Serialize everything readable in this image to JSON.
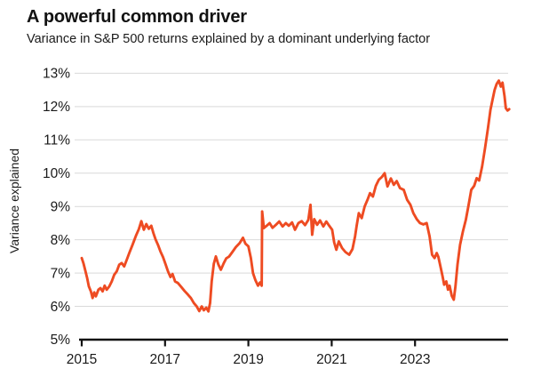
{
  "header": {
    "title": "A powerful common driver",
    "subtitle": "Variance in S&P 500 returns explained by a dominant underlying factor"
  },
  "chart_data": {
    "type": "line",
    "title": "A powerful common driver",
    "subtitle": "Variance in S&P 500 returns explained by a dominant underlying factor",
    "xlabel": "",
    "ylabel": "Variance explained",
    "ylim": [
      5,
      13
    ],
    "xlim": [
      2014.95,
      2025.3
    ],
    "yticks": [
      5,
      6,
      7,
      8,
      9,
      10,
      11,
      12,
      13
    ],
    "ytick_suffix": "%",
    "xticks": [
      2015,
      2017,
      2019,
      2021,
      2023
    ],
    "grid": "horizontal",
    "legend": "none",
    "line_color": "#EE4B22",
    "grid_color": "#d9d9d9",
    "axis_color": "#111111",
    "label_color": "#1a1a1a",
    "series": [
      {
        "name": "Variance explained by dominant factor",
        "points": [
          [
            2015.0,
            7.45
          ],
          [
            2015.04,
            7.3
          ],
          [
            2015.08,
            7.1
          ],
          [
            2015.13,
            6.85
          ],
          [
            2015.17,
            6.6
          ],
          [
            2015.22,
            6.45
          ],
          [
            2015.26,
            6.25
          ],
          [
            2015.3,
            6.42
          ],
          [
            2015.34,
            6.3
          ],
          [
            2015.4,
            6.5
          ],
          [
            2015.45,
            6.55
          ],
          [
            2015.5,
            6.45
          ],
          [
            2015.55,
            6.62
          ],
          [
            2015.6,
            6.5
          ],
          [
            2015.66,
            6.6
          ],
          [
            2015.72,
            6.75
          ],
          [
            2015.78,
            6.95
          ],
          [
            2015.84,
            7.05
          ],
          [
            2015.9,
            7.25
          ],
          [
            2015.96,
            7.3
          ],
          [
            2016.02,
            7.2
          ],
          [
            2016.08,
            7.4
          ],
          [
            2016.14,
            7.6
          ],
          [
            2016.22,
            7.85
          ],
          [
            2016.3,
            8.12
          ],
          [
            2016.37,
            8.32
          ],
          [
            2016.43,
            8.56
          ],
          [
            2016.49,
            8.3
          ],
          [
            2016.55,
            8.47
          ],
          [
            2016.61,
            8.33
          ],
          [
            2016.67,
            8.42
          ],
          [
            2016.72,
            8.2
          ],
          [
            2016.77,
            8.02
          ],
          [
            2016.83,
            7.85
          ],
          [
            2016.89,
            7.65
          ],
          [
            2016.95,
            7.48
          ],
          [
            2017.01,
            7.27
          ],
          [
            2017.07,
            7.05
          ],
          [
            2017.13,
            6.88
          ],
          [
            2017.18,
            6.97
          ],
          [
            2017.24,
            6.75
          ],
          [
            2017.31,
            6.7
          ],
          [
            2017.39,
            6.58
          ],
          [
            2017.47,
            6.46
          ],
          [
            2017.55,
            6.35
          ],
          [
            2017.62,
            6.25
          ],
          [
            2017.69,
            6.1
          ],
          [
            2017.76,
            6.0
          ],
          [
            2017.82,
            5.86
          ],
          [
            2017.88,
            6.0
          ],
          [
            2017.93,
            5.88
          ],
          [
            2017.99,
            5.96
          ],
          [
            2018.04,
            5.85
          ],
          [
            2018.08,
            6.1
          ],
          [
            2018.12,
            6.75
          ],
          [
            2018.17,
            7.28
          ],
          [
            2018.22,
            7.5
          ],
          [
            2018.28,
            7.26
          ],
          [
            2018.34,
            7.1
          ],
          [
            2018.41,
            7.3
          ],
          [
            2018.47,
            7.44
          ],
          [
            2018.54,
            7.5
          ],
          [
            2018.62,
            7.64
          ],
          [
            2018.7,
            7.78
          ],
          [
            2018.79,
            7.9
          ],
          [
            2018.87,
            8.06
          ],
          [
            2018.93,
            7.88
          ],
          [
            2019.0,
            7.8
          ],
          [
            2019.06,
            7.45
          ],
          [
            2019.11,
            7.0
          ],
          [
            2019.17,
            6.78
          ],
          [
            2019.23,
            6.62
          ],
          [
            2019.28,
            6.72
          ],
          [
            2019.32,
            6.62
          ],
          [
            2019.33,
            8.85
          ],
          [
            2019.37,
            8.35
          ],
          [
            2019.44,
            8.42
          ],
          [
            2019.51,
            8.5
          ],
          [
            2019.58,
            8.36
          ],
          [
            2019.66,
            8.45
          ],
          [
            2019.74,
            8.55
          ],
          [
            2019.82,
            8.4
          ],
          [
            2019.9,
            8.5
          ],
          [
            2019.97,
            8.42
          ],
          [
            2020.05,
            8.52
          ],
          [
            2020.12,
            8.3
          ],
          [
            2020.2,
            8.5
          ],
          [
            2020.28,
            8.56
          ],
          [
            2020.36,
            8.44
          ],
          [
            2020.44,
            8.6
          ],
          [
            2020.49,
            9.05
          ],
          [
            2020.53,
            8.15
          ],
          [
            2020.58,
            8.62
          ],
          [
            2020.65,
            8.45
          ],
          [
            2020.72,
            8.58
          ],
          [
            2020.8,
            8.4
          ],
          [
            2020.87,
            8.55
          ],
          [
            2020.94,
            8.42
          ],
          [
            2021.01,
            8.3
          ],
          [
            2021.06,
            7.92
          ],
          [
            2021.11,
            7.7
          ],
          [
            2021.17,
            7.95
          ],
          [
            2021.25,
            7.75
          ],
          [
            2021.33,
            7.63
          ],
          [
            2021.42,
            7.55
          ],
          [
            2021.5,
            7.72
          ],
          [
            2021.56,
            8.1
          ],
          [
            2021.6,
            8.42
          ],
          [
            2021.65,
            8.8
          ],
          [
            2021.72,
            8.65
          ],
          [
            2021.79,
            9.0
          ],
          [
            2021.86,
            9.2
          ],
          [
            2021.92,
            9.4
          ],
          [
            2021.99,
            9.3
          ],
          [
            2022.06,
            9.62
          ],
          [
            2022.13,
            9.8
          ],
          [
            2022.2,
            9.88
          ],
          [
            2022.27,
            10.0
          ],
          [
            2022.34,
            9.6
          ],
          [
            2022.42,
            9.84
          ],
          [
            2022.49,
            9.65
          ],
          [
            2022.56,
            9.76
          ],
          [
            2022.64,
            9.55
          ],
          [
            2022.73,
            9.5
          ],
          [
            2022.81,
            9.2
          ],
          [
            2022.89,
            9.05
          ],
          [
            2022.96,
            8.8
          ],
          [
            2023.04,
            8.62
          ],
          [
            2023.12,
            8.5
          ],
          [
            2023.2,
            8.46
          ],
          [
            2023.28,
            8.5
          ],
          [
            2023.35,
            8.1
          ],
          [
            2023.41,
            7.55
          ],
          [
            2023.47,
            7.45
          ],
          [
            2023.52,
            7.6
          ],
          [
            2023.56,
            7.48
          ],
          [
            2023.61,
            7.2
          ],
          [
            2023.66,
            6.9
          ],
          [
            2023.7,
            6.65
          ],
          [
            2023.75,
            6.75
          ],
          [
            2023.79,
            6.5
          ],
          [
            2023.83,
            6.62
          ],
          [
            2023.88,
            6.32
          ],
          [
            2023.93,
            6.2
          ],
          [
            2023.97,
            6.6
          ],
          [
            2024.02,
            7.25
          ],
          [
            2024.08,
            7.85
          ],
          [
            2024.15,
            8.25
          ],
          [
            2024.22,
            8.6
          ],
          [
            2024.28,
            9.0
          ],
          [
            2024.35,
            9.5
          ],
          [
            2024.42,
            9.62
          ],
          [
            2024.48,
            9.85
          ],
          [
            2024.54,
            9.78
          ],
          [
            2024.61,
            10.2
          ],
          [
            2024.68,
            10.75
          ],
          [
            2024.75,
            11.35
          ],
          [
            2024.81,
            11.9
          ],
          [
            2024.86,
            12.2
          ],
          [
            2024.91,
            12.5
          ],
          [
            2024.96,
            12.68
          ],
          [
            2025.01,
            12.78
          ],
          [
            2025.06,
            12.6
          ],
          [
            2025.1,
            12.72
          ],
          [
            2025.15,
            12.3
          ],
          [
            2025.18,
            11.95
          ],
          [
            2025.22,
            11.88
          ],
          [
            2025.26,
            11.92
          ]
        ]
      }
    ]
  }
}
